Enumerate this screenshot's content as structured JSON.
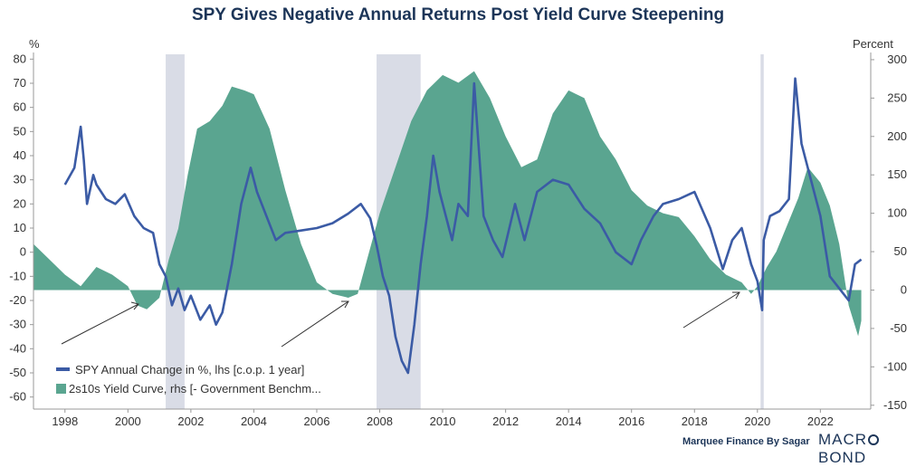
{
  "title": "SPY Gives Negative Annual Returns Post Yield Curve Steepening",
  "footer": {
    "credit": "Marquee Finance By Sagar",
    "brand_left": "MACR",
    "brand_right": "BOND"
  },
  "chart_data": {
    "type": "line+area",
    "title": "SPY Gives Negative Annual Returns Post Yield Curve Steepening",
    "left_axis": {
      "unit": "%",
      "range": [
        -65,
        82
      ],
      "ticks": [
        80,
        70,
        60,
        50,
        40,
        30,
        20,
        10,
        0,
        -10,
        -20,
        -30,
        -40,
        -50,
        -60
      ]
    },
    "right_axis": {
      "unit": "Percent",
      "range": [
        -155,
        307
      ],
      "ticks": [
        300,
        250,
        200,
        150,
        100,
        50,
        0,
        -50,
        -100,
        -150
      ]
    },
    "x_axis": {
      "range": [
        1997,
        2023.6
      ],
      "ticks": [
        "1998",
        "2000",
        "2002",
        "2004",
        "2006",
        "2008",
        "2010",
        "2012",
        "2014",
        "2016",
        "2018",
        "2020",
        "2022"
      ]
    },
    "recessions": [
      [
        2001.2,
        2001.8
      ],
      [
        2007.9,
        2009.3
      ],
      [
        2020.1,
        2020.2
      ]
    ],
    "legend": [
      {
        "label": "SPY Annual Change in %, lhs [c.o.p. 1 year]",
        "color": "#3b5ba5"
      },
      {
        "label": "2s10s Yield Curve, rhs [- Government Benchm...",
        "color": "#5aa590"
      }
    ],
    "series": [
      {
        "name": "SPY Annual Change in %, lhs [c.o.p. 1 year]",
        "axis": "left",
        "color": "#3b5ba5",
        "x": [
          1998.0,
          1998.3,
          1998.5,
          1998.6,
          1998.7,
          1998.9,
          1999.0,
          1999.3,
          1999.6,
          1999.9,
          2000.2,
          2000.5,
          2000.8,
          2001.0,
          2001.2,
          2001.4,
          2001.6,
          2001.8,
          2002.0,
          2002.3,
          2002.6,
          2002.8,
          2003.0,
          2003.3,
          2003.6,
          2003.9,
          2004.1,
          2004.4,
          2004.7,
          2005.0,
          2005.5,
          2006.0,
          2006.5,
          2007.0,
          2007.4,
          2007.7,
          2007.9,
          2008.1,
          2008.3,
          2008.5,
          2008.7,
          2008.9,
          2009.1,
          2009.3,
          2009.5,
          2009.7,
          2009.9,
          2010.1,
          2010.3,
          2010.5,
          2010.8,
          2011.0,
          2011.3,
          2011.6,
          2011.9,
          2012.3,
          2012.6,
          2013.0,
          2013.5,
          2014.0,
          2014.5,
          2015.0,
          2015.5,
          2016.0,
          2016.3,
          2016.7,
          2017.0,
          2017.5,
          2018.0,
          2018.5,
          2018.9,
          2019.2,
          2019.5,
          2019.8,
          2020.0,
          2020.15,
          2020.2,
          2020.4,
          2020.7,
          2021.0,
          2021.2,
          2021.4,
          2021.7,
          2022.0,
          2022.3,
          2022.6,
          2022.9,
          2023.1,
          2023.3
        ],
        "y": [
          28,
          35,
          52,
          38,
          20,
          32,
          28,
          22,
          20,
          24,
          15,
          10,
          8,
          -5,
          -10,
          -22,
          -15,
          -24,
          -18,
          -28,
          -22,
          -30,
          -25,
          -5,
          20,
          35,
          25,
          15,
          5,
          8,
          9,
          10,
          12,
          16,
          20,
          14,
          3,
          -10,
          -18,
          -35,
          -45,
          -50,
          -30,
          -5,
          15,
          40,
          25,
          15,
          5,
          20,
          15,
          70,
          15,
          5,
          -2,
          20,
          5,
          25,
          30,
          28,
          18,
          12,
          0,
          -5,
          5,
          15,
          20,
          22,
          25,
          10,
          -7,
          5,
          10,
          -5,
          -12,
          -24,
          5,
          15,
          17,
          22,
          72,
          45,
          30,
          15,
          -10,
          -15,
          -20,
          -5,
          -3
        ]
      },
      {
        "name": "2s10s Yield Curve, rhs [- Government Benchm...",
        "axis": "right",
        "color": "#5aa590",
        "x": [
          1997.0,
          1997.5,
          1998.0,
          1998.5,
          1999.0,
          1999.5,
          2000.0,
          2000.3,
          2000.6,
          2001.0,
          2001.3,
          2001.6,
          2001.9,
          2002.2,
          2002.6,
          2003.0,
          2003.3,
          2003.7,
          2004.0,
          2004.5,
          2005.0,
          2005.5,
          2006.0,
          2006.5,
          2007.0,
          2007.3,
          2007.6,
          2008.0,
          2008.5,
          2009.0,
          2009.5,
          2010.0,
          2010.5,
          2011.0,
          2011.5,
          2012.0,
          2012.5,
          2013.0,
          2013.5,
          2014.0,
          2014.5,
          2015.0,
          2015.5,
          2016.0,
          2016.5,
          2017.0,
          2017.5,
          2018.0,
          2018.5,
          2019.0,
          2019.5,
          2019.8,
          2020.0,
          2020.3,
          2020.6,
          2021.0,
          2021.3,
          2021.6,
          2022.0,
          2022.3,
          2022.6,
          2022.9,
          2023.2,
          2023.3
        ],
        "y": [
          60,
          40,
          20,
          5,
          30,
          20,
          5,
          -20,
          -25,
          -10,
          40,
          80,
          150,
          210,
          220,
          240,
          265,
          260,
          255,
          210,
          130,
          60,
          10,
          -5,
          -10,
          -5,
          40,
          100,
          160,
          220,
          260,
          280,
          270,
          285,
          250,
          200,
          160,
          170,
          230,
          260,
          250,
          200,
          170,
          130,
          110,
          100,
          95,
          70,
          40,
          20,
          10,
          -5,
          5,
          30,
          50,
          90,
          120,
          160,
          140,
          110,
          60,
          -20,
          -60,
          -40
        ]
      }
    ]
  }
}
